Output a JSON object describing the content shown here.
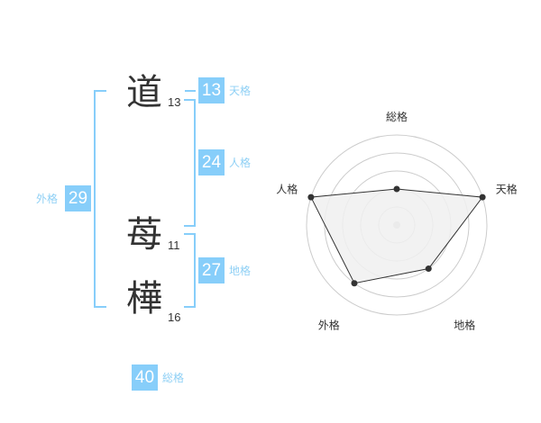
{
  "name": {
    "characters": [
      {
        "char": "道",
        "strokes": "13"
      },
      {
        "char": "苺",
        "strokes": "11"
      },
      {
        "char": "樺",
        "strokes": "16"
      }
    ]
  },
  "fortunes": {
    "tenkaku": {
      "label": "天格",
      "value": "13"
    },
    "jinkaku": {
      "label": "人格",
      "value": "24"
    },
    "chikaku": {
      "label": "地格",
      "value": "27"
    },
    "gaikaku": {
      "label": "外格",
      "value": "29"
    },
    "soukaku": {
      "label": "総格",
      "value": "40"
    }
  },
  "colors": {
    "accent": "#87cefa",
    "label": "#8fd0f5",
    "radar_fill": "#f0f0f0",
    "radar_line": "#333333",
    "grid": "#cccccc"
  },
  "chart_data": {
    "type": "radar",
    "axes": [
      "総格",
      "天格",
      "地格",
      "外格",
      "人格"
    ],
    "values": [
      2,
      5,
      3,
      4,
      5
    ],
    "range": [
      0,
      5
    ],
    "rings": 5
  }
}
